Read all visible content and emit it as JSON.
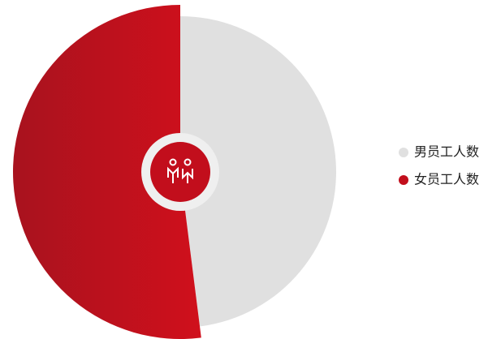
{
  "chart_data": {
    "type": "pie",
    "categories": [
      "男员工人数",
      "女员工人数"
    ],
    "values": [
      48,
      52
    ],
    "colors": [
      "#e0e0e0",
      "#c20e1c"
    ],
    "legend": "right"
  }
}
